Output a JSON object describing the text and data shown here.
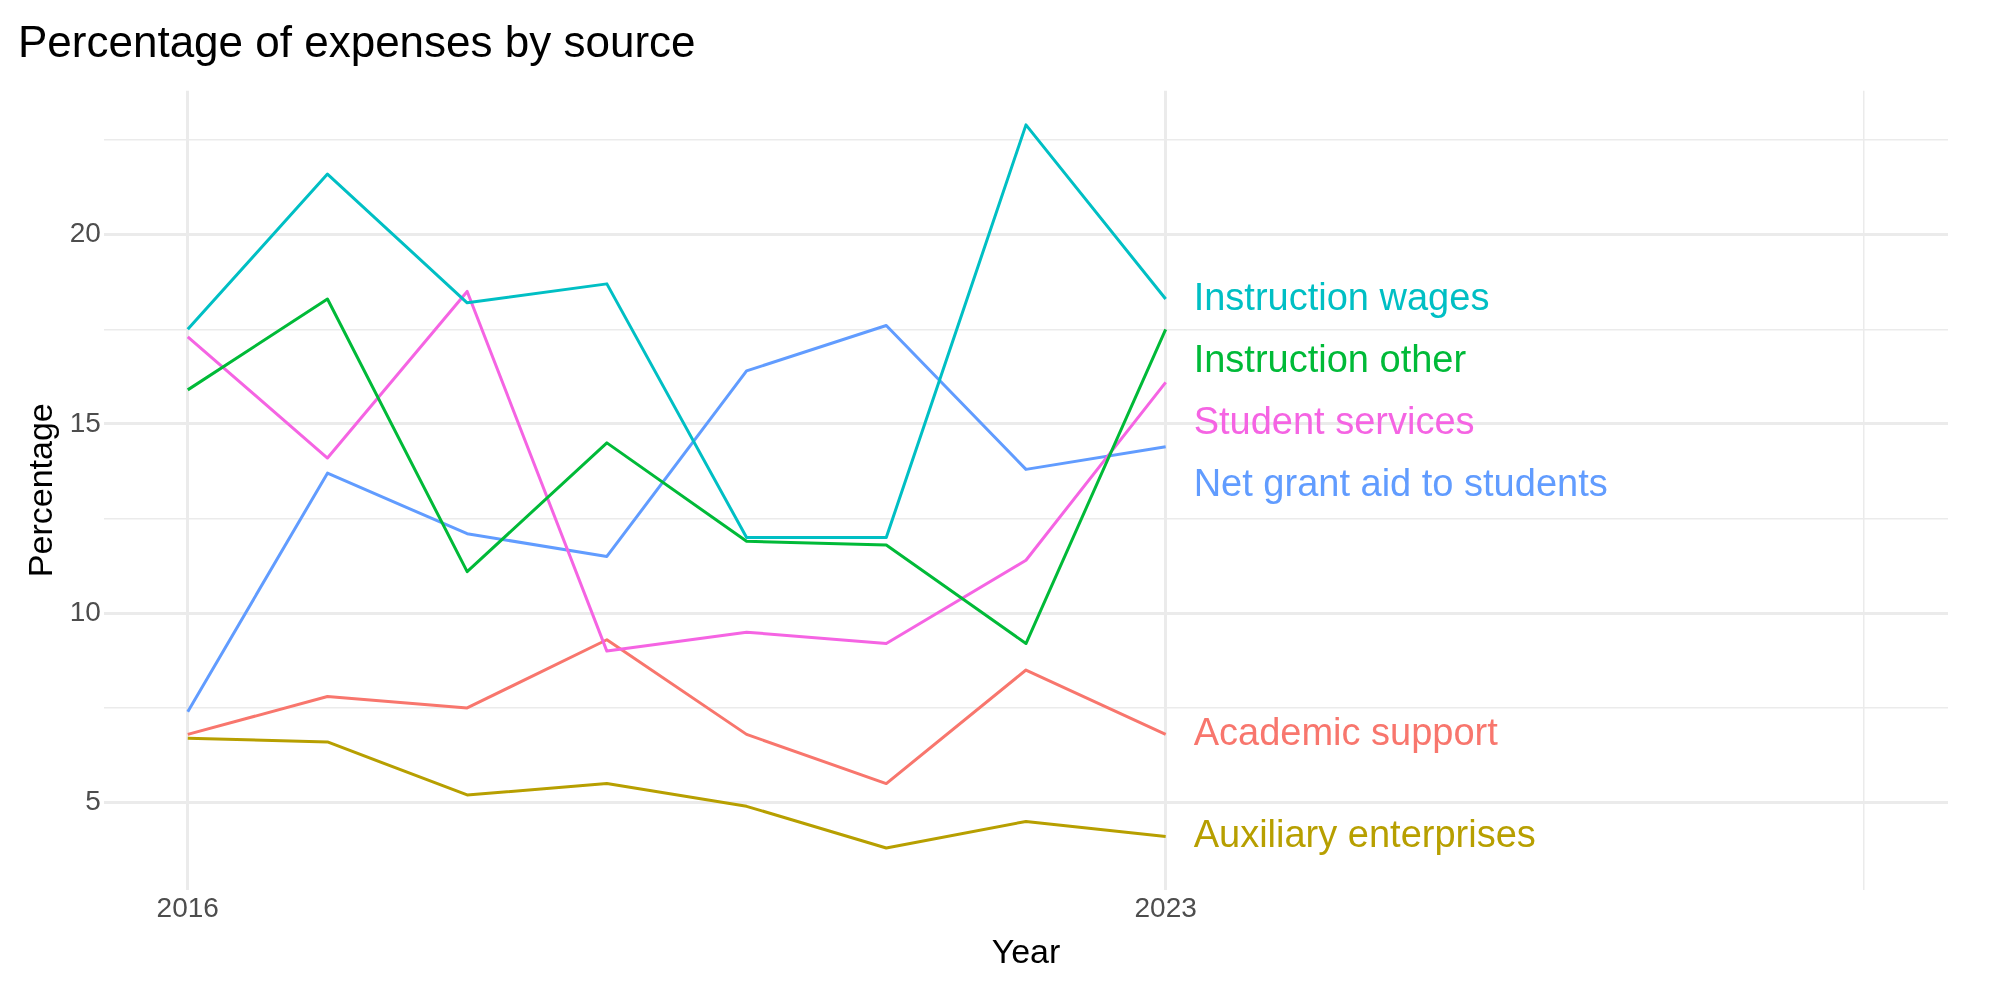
{
  "chart_data": {
    "type": "line",
    "title": "Percentage of expenses by source",
    "xlabel": "Year",
    "ylabel": "Percentage",
    "x": [
      2016,
      2017,
      2018,
      2019,
      2020,
      2021,
      2022,
      2023
    ],
    "xlim": [
      2015.4,
      2028.6
    ],
    "xticks": [
      2016,
      2023,
      {
        "value": 2028,
        "label": null
      }
    ],
    "ylim": [
      2.7,
      23.8
    ],
    "yticks": [
      5,
      {
        "value": 7.5,
        "label": null
      },
      10,
      {
        "value": 12.5,
        "label": null
      },
      15,
      {
        "value": 17.5,
        "label": null
      },
      20,
      {
        "value": 22.5,
        "label": null
      }
    ],
    "grid": true,
    "legend": false,
    "marker": "none",
    "line_style": "solid",
    "series": [
      {
        "name": "Instruction wages",
        "color": "#00bfc4",
        "values": [
          17.5,
          21.6,
          18.2,
          18.7,
          12.0,
          12.0,
          22.9,
          18.3
        ]
      },
      {
        "name": "Instruction other",
        "color": "#00ba38",
        "values": [
          15.9,
          18.3,
          11.1,
          14.5,
          11.9,
          11.8,
          9.2,
          17.5
        ]
      },
      {
        "name": "Student services",
        "color": "#f564e3",
        "values": [
          17.3,
          14.1,
          18.5,
          9.0,
          9.5,
          9.2,
          11.4,
          16.1
        ]
      },
      {
        "name": "Net grant aid to students",
        "color": "#619cff",
        "values": [
          7.4,
          13.7,
          12.1,
          11.5,
          16.4,
          17.6,
          13.8,
          14.4
        ]
      },
      {
        "name": "Academic support",
        "color": "#f8766d",
        "values": [
          6.8,
          7.8,
          7.5,
          9.3,
          6.8,
          5.5,
          8.5,
          6.8
        ]
      },
      {
        "name": "Auxiliary enterprises",
        "color": "#b79f00",
        "values": [
          6.7,
          6.6,
          5.2,
          5.5,
          4.9,
          3.8,
          4.5,
          4.1
        ]
      }
    ]
  }
}
